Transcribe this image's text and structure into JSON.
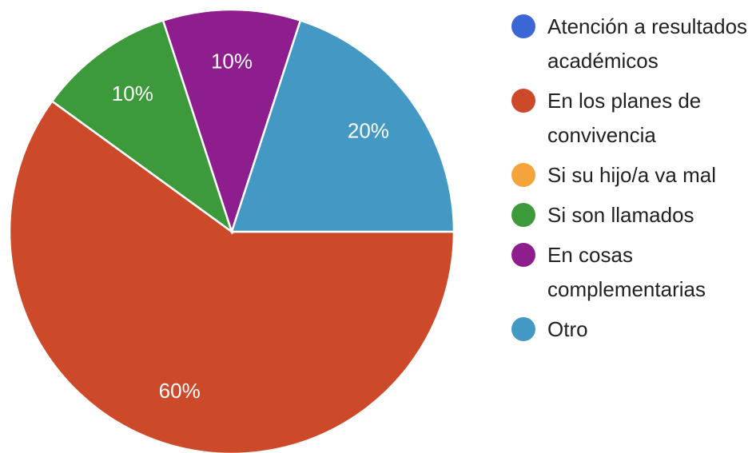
{
  "chart_data": {
    "type": "pie",
    "categories": [
      "Atención a resultados académicos",
      "En los planes de convivencia",
      "Si su hijo/a va mal",
      "Si son llamados",
      "En cosas complementarias",
      "Otro"
    ],
    "values": [
      0,
      60,
      0,
      10,
      10,
      20
    ],
    "value_labels": [
      null,
      "60%",
      null,
      "10%",
      "10%",
      "20%"
    ],
    "colors": [
      "#3b66d6",
      "#cc4a2a",
      "#f4a43a",
      "#3d9a3a",
      "#8e1d8e",
      "#4499c4"
    ],
    "legend": "right"
  }
}
